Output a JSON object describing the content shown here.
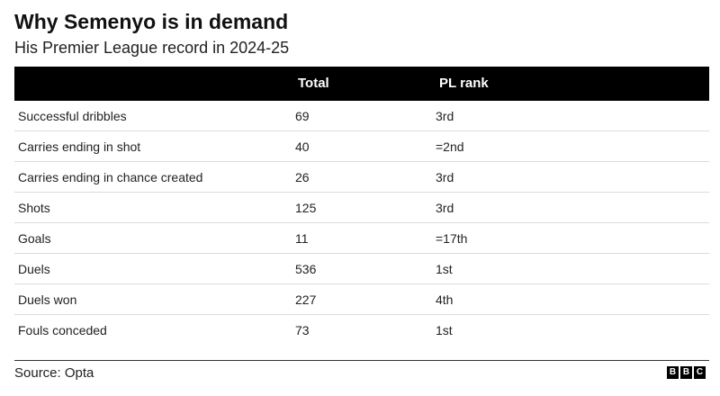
{
  "chart_data": {
    "type": "table",
    "title": "Why Semenyo is in demand",
    "subtitle": "His Premier League record in 2024-25",
    "columns": [
      "",
      "Total",
      "PL rank"
    ],
    "rows": [
      {
        "label": "Successful dribbles",
        "total": "69",
        "rank": "3rd"
      },
      {
        "label": "Carries ending in shot",
        "total": "40",
        "rank": "=2nd"
      },
      {
        "label": "Carries ending in chance created",
        "total": "26",
        "rank": "3rd"
      },
      {
        "label": "Shots",
        "total": "125",
        "rank": "3rd"
      },
      {
        "label": "Goals",
        "total": "11",
        "rank": "=17th"
      },
      {
        "label": "Duels",
        "total": "536",
        "rank": "1st"
      },
      {
        "label": "Duels won",
        "total": "227",
        "rank": "4th"
      },
      {
        "label": "Fouls conceded",
        "total": "73",
        "rank": "1st"
      }
    ]
  },
  "footer": {
    "source": "Source: Opta",
    "logo_letters": [
      "B",
      "B",
      "C"
    ]
  },
  "colors": {
    "header_bg": "#000000",
    "header_text": "#ffffff",
    "row_divider": "#dcdcdc"
  }
}
